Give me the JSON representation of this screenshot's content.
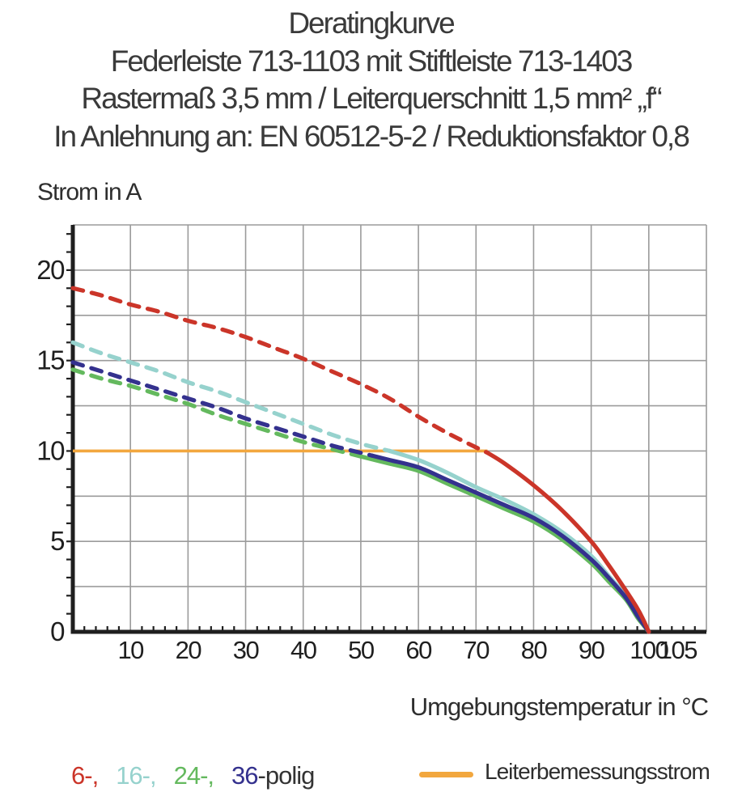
{
  "header": {
    "title": "Deratingkurve",
    "subtitle1": "Federleiste 713-1103 mit Stiftleiste 713-1403",
    "subtitle2": "Rastermaß 3,5 mm / Leiterquerschnitt 1,5 mm² „f“",
    "subtitle3": "In Anlehnung an: EN 60512-5-2 / Reduktionsfaktor 0,8"
  },
  "legend": {
    "items": [
      {
        "label": "6-,",
        "color": "#cb3529"
      },
      {
        "label": "16-,",
        "color": "#96d2cd"
      },
      {
        "label": "24-,",
        "color": "#64b95e"
      },
      {
        "label": "36",
        "color": "#34318e"
      }
    ],
    "suffix": "-polig",
    "suffix_color": "#333333",
    "rated_label": "Leiterbemessungsstrom",
    "rated_color": "#f2a73e"
  },
  "chart_data": {
    "type": "line",
    "title": "Deratingkurve",
    "xlabel": "Umgebungstemperatur in °C",
    "ylabel": "Strom in A",
    "xlim": [
      0,
      110
    ],
    "ylim": [
      0,
      22.5
    ],
    "grid": true,
    "x_major_grid_step": 10,
    "y_major_grid_step": 2.5,
    "x_minor_tick_step": 2,
    "y_minor_tick_step": 1,
    "x_tick_labels": [
      10,
      20,
      30,
      40,
      50,
      60,
      70,
      80,
      90,
      100,
      105
    ],
    "y_tick_labels": [
      0,
      5,
      10,
      15,
      20
    ],
    "axis_color": "#1f1f1f",
    "grid_color": "#9b9b9b",
    "dash_note": "curves are dashed above the rated current line and solid below it",
    "draw_order": [
      1,
      2,
      3,
      0
    ],
    "series": [
      {
        "name": "6-polig",
        "color": "#cb3529",
        "dash_until": 72,
        "points": [
          [
            0,
            19.0
          ],
          [
            5,
            18.6
          ],
          [
            10,
            18.1
          ],
          [
            15,
            17.7
          ],
          [
            20,
            17.2
          ],
          [
            25,
            16.8
          ],
          [
            30,
            16.3
          ],
          [
            35,
            15.7
          ],
          [
            40,
            15.1
          ],
          [
            45,
            14.4
          ],
          [
            50,
            13.7
          ],
          [
            55,
            12.9
          ],
          [
            60,
            11.9
          ],
          [
            65,
            11.0
          ],
          [
            70,
            10.2
          ],
          [
            72,
            9.9
          ],
          [
            75,
            9.3
          ],
          [
            80,
            8.1
          ],
          [
            85,
            6.7
          ],
          [
            90,
            5.0
          ],
          [
            93,
            3.7
          ],
          [
            96,
            2.3
          ],
          [
            98,
            1.3
          ],
          [
            99,
            0.7
          ],
          [
            100,
            0
          ]
        ]
      },
      {
        "name": "16-polig",
        "color": "#96d2cd",
        "dash_until": 55,
        "points": [
          [
            0,
            16.0
          ],
          [
            5,
            15.4
          ],
          [
            10,
            14.9
          ],
          [
            15,
            14.4
          ],
          [
            20,
            13.8
          ],
          [
            25,
            13.3
          ],
          [
            30,
            12.7
          ],
          [
            35,
            12.1
          ],
          [
            40,
            11.5
          ],
          [
            45,
            10.9
          ],
          [
            50,
            10.4
          ],
          [
            55,
            10.0
          ],
          [
            60,
            9.5
          ],
          [
            65,
            8.8
          ],
          [
            70,
            8.0
          ],
          [
            75,
            7.3
          ],
          [
            80,
            6.5
          ],
          [
            85,
            5.5
          ],
          [
            90,
            4.2
          ],
          [
            93,
            3.1
          ],
          [
            96,
            2.0
          ],
          [
            98,
            1.0
          ],
          [
            99,
            0.5
          ],
          [
            100,
            0
          ]
        ]
      },
      {
        "name": "24-polig",
        "color": "#64b95e",
        "dash_until": 50,
        "points": [
          [
            0,
            14.5
          ],
          [
            5,
            14.0
          ],
          [
            10,
            13.6
          ],
          [
            15,
            13.1
          ],
          [
            20,
            12.6
          ],
          [
            25,
            12.0
          ],
          [
            30,
            11.5
          ],
          [
            35,
            11.0
          ],
          [
            40,
            10.5
          ],
          [
            45,
            10.1
          ],
          [
            50,
            9.7
          ],
          [
            55,
            9.3
          ],
          [
            60,
            8.9
          ],
          [
            65,
            8.2
          ],
          [
            70,
            7.5
          ],
          [
            75,
            6.8
          ],
          [
            80,
            6.1
          ],
          [
            85,
            5.1
          ],
          [
            90,
            3.8
          ],
          [
            93,
            2.8
          ],
          [
            96,
            1.8
          ],
          [
            98,
            0.8
          ],
          [
            99,
            0.4
          ],
          [
            100,
            0
          ]
        ]
      },
      {
        "name": "36-polig",
        "color": "#34318e",
        "dash_until": 52,
        "points": [
          [
            0,
            14.9
          ],
          [
            5,
            14.4
          ],
          [
            10,
            13.9
          ],
          [
            15,
            13.4
          ],
          [
            20,
            12.9
          ],
          [
            25,
            12.4
          ],
          [
            30,
            11.8
          ],
          [
            35,
            11.3
          ],
          [
            40,
            10.8
          ],
          [
            45,
            10.3
          ],
          [
            50,
            9.9
          ],
          [
            55,
            9.5
          ],
          [
            60,
            9.1
          ],
          [
            65,
            8.4
          ],
          [
            70,
            7.7
          ],
          [
            75,
            7.0
          ],
          [
            80,
            6.3
          ],
          [
            85,
            5.3
          ],
          [
            90,
            4.0
          ],
          [
            93,
            3.0
          ],
          [
            96,
            1.9
          ],
          [
            98,
            0.9
          ],
          [
            99,
            0.45
          ],
          [
            100,
            0
          ]
        ]
      }
    ],
    "rated_line": {
      "name": "Leiterbemessungsstrom",
      "color": "#f2a73e",
      "y": 10,
      "x_start": 0,
      "x_end": 72
    }
  }
}
